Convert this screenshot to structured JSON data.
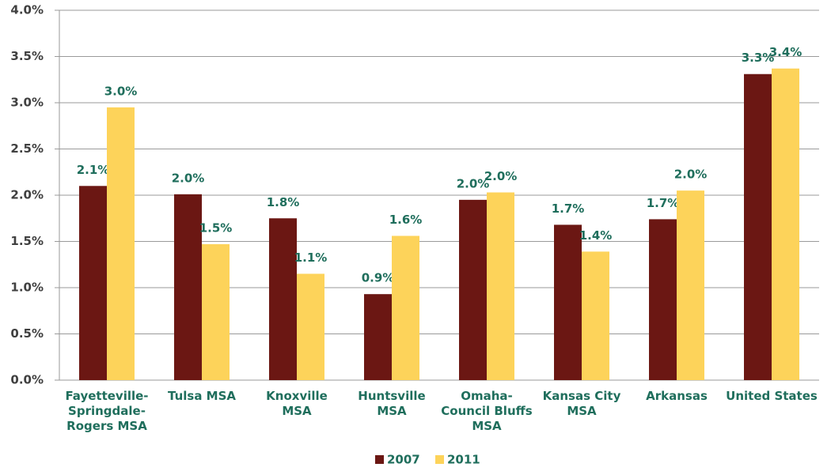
{
  "chart_data": {
    "type": "bar",
    "categories": [
      "Fayetteville-Springdale-Rogers MSA",
      "Tulsa MSA",
      "Knoxville MSA",
      "Huntsville MSA",
      "Omaha-Council Bluffs MSA",
      "Kansas City MSA",
      "Arkansas",
      "United States"
    ],
    "series": [
      {
        "name": "2007",
        "color": "#6b1713",
        "values": [
          2.1,
          2.01,
          1.75,
          0.93,
          1.95,
          1.68,
          1.74,
          3.31
        ],
        "value_labels": [
          "2.1%",
          "2.0%",
          "1.8%",
          "0.9%",
          "2.0%",
          "1.7%",
          "1.7%",
          "3.3%"
        ]
      },
      {
        "name": "2011",
        "color": "#fdd35a",
        "values": [
          2.95,
          1.47,
          1.15,
          1.56,
          2.03,
          1.39,
          2.05,
          3.37
        ],
        "value_labels": [
          "3.0%",
          "1.5%",
          "1.1%",
          "1.6%",
          "2.0%",
          "1.4%",
          "2.0%",
          "3.4%"
        ]
      }
    ],
    "ylim": [
      0,
      4
    ],
    "yticks": [
      {
        "value": 0,
        "label": "0.0%"
      },
      {
        "value": 0.5,
        "label": "0.5%"
      },
      {
        "value": 1,
        "label": "1.0%"
      },
      {
        "value": 1.5,
        "label": "1.5%"
      },
      {
        "value": 2,
        "label": "2.0%"
      },
      {
        "value": 2.5,
        "label": "2.5%"
      },
      {
        "value": 3,
        "label": "3.0%"
      },
      {
        "value": 3.5,
        "label": "3.5%"
      },
      {
        "value": 4,
        "label": "4.0%"
      }
    ],
    "grid": true,
    "legend": "bottom"
  }
}
